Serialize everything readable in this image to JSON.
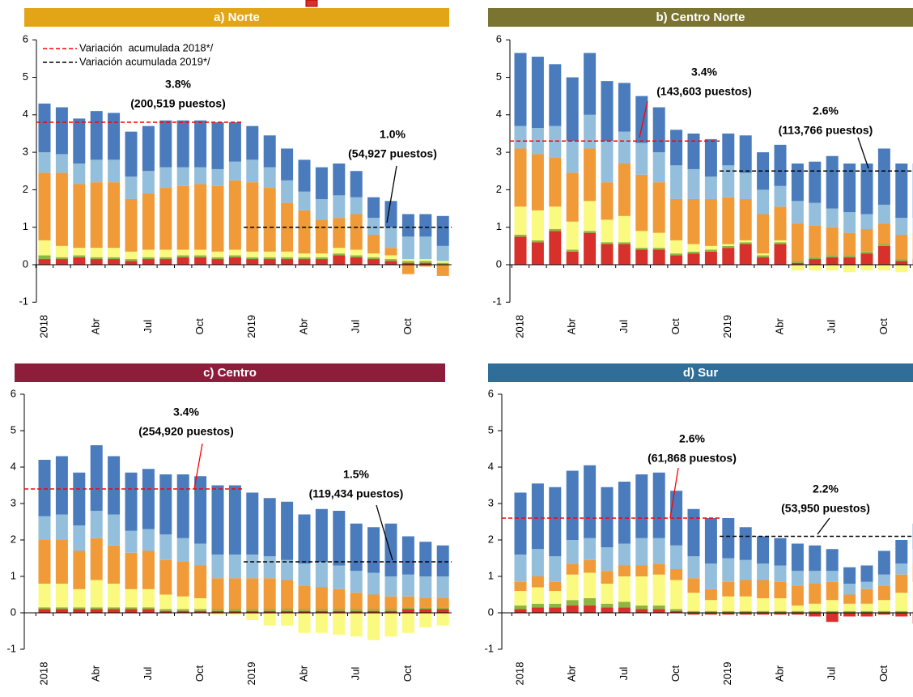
{
  "chart_data": [
    {
      "type": "bar",
      "title": "a) Norte",
      "title_color": "#e2a517",
      "categories": [
        "2018",
        null,
        null,
        "Abr",
        null,
        null,
        "Jul",
        null,
        null,
        "Oct",
        null,
        null,
        "2019",
        null,
        null,
        "Abr",
        null,
        null,
        "Jul",
        null,
        null,
        "Oct",
        null,
        null
      ],
      "ylim": [
        -1,
        6
      ],
      "yticks": [
        -1,
        0,
        1,
        2,
        3,
        4,
        5,
        6
      ],
      "series": [
        {
          "color": "#d8302a",
          "values": [
            0.15,
            0.15,
            0.2,
            0.15,
            0.15,
            0.1,
            0.15,
            0.15,
            0.2,
            0.2,
            0.15,
            0.2,
            0.15,
            0.15,
            0.15,
            0.15,
            0.15,
            0.25,
            0.2,
            0.15,
            0.1,
            0.05,
            0.05,
            0
          ]
        },
        {
          "color": "#8db640",
          "values": [
            0.1,
            0.05,
            0.05,
            0.05,
            0.05,
            0.05,
            0.05,
            0.05,
            0.05,
            0.05,
            0.05,
            0.05,
            0.05,
            0.05,
            0.05,
            0.05,
            0.05,
            0.05,
            0.05,
            0.05,
            0.05,
            0.05,
            0.05,
            0.05
          ]
        },
        {
          "color": "#fafa80",
          "values": [
            0.4,
            0.3,
            0.2,
            0.25,
            0.25,
            0.2,
            0.2,
            0.2,
            0.15,
            0.15,
            0.15,
            0.15,
            0.15,
            0.15,
            0.15,
            0.1,
            0.1,
            0.15,
            0.15,
            0.1,
            0.1,
            0.05,
            0.05,
            0.05
          ]
        },
        {
          "color": "#f09a38",
          "values": [
            1.8,
            1.95,
            1.7,
            1.75,
            1.75,
            1.4,
            1.5,
            1.65,
            1.7,
            1.75,
            1.75,
            1.85,
            1.85,
            1.7,
            1.3,
            1.15,
            0.9,
            0.8,
            0.95,
            0.5,
            0.2,
            -0.25,
            -0.05,
            -0.3
          ]
        },
        {
          "color": "#93bfdd",
          "values": [
            0.55,
            0.5,
            0.55,
            0.6,
            0.6,
            0.6,
            0.6,
            0.55,
            0.5,
            0.45,
            0.45,
            0.5,
            0.6,
            0.55,
            0.6,
            0.5,
            0.55,
            0.6,
            0.45,
            0.45,
            0.55,
            0.6,
            0.6,
            0.4
          ]
        },
        {
          "color": "#4a7bbd",
          "values": [
            1.3,
            1.25,
            1.2,
            1.3,
            1.25,
            1.2,
            1.2,
            1.25,
            1.25,
            1.25,
            1.25,
            1.05,
            0.9,
            0.85,
            0.85,
            0.85,
            0.85,
            0.85,
            0.7,
            0.55,
            0.7,
            0.6,
            0.6,
            0.8
          ]
        }
      ],
      "hlines": [
        {
          "value": 3.8,
          "color": "#ff0000",
          "name": "Variación  acumulada 2018*/"
        },
        {
          "value": 1.0,
          "color": "#000000",
          "name": "Variación acumulada 2019*/"
        }
      ],
      "annotations": [
        {
          "lines": [
            "3.8%",
            "(200,519 puestos)"
          ],
          "color": "#ff0000"
        },
        {
          "lines": [
            "1.0%",
            "(54,927 puestos)"
          ],
          "color": "#000000"
        }
      ]
    },
    {
      "type": "bar",
      "title": "b) Centro Norte",
      "title_color": "#7a7430",
      "categories": [
        "2018",
        null,
        null,
        "Abr",
        null,
        null,
        "Jul",
        null,
        null,
        "Oct",
        null,
        null,
        "2019",
        null,
        null,
        "Abr",
        null,
        null,
        "Jul",
        null,
        null,
        "Oct",
        null,
        null
      ],
      "ylim": [
        -1,
        6
      ],
      "yticks": [
        -1,
        0,
        1,
        2,
        3,
        4,
        5,
        6
      ],
      "series": [
        {
          "color": "#d8302a",
          "values": [
            0.75,
            0.6,
            0.9,
            0.35,
            0.85,
            0.55,
            0.55,
            0.4,
            0.4,
            0.25,
            0.3,
            0.35,
            0.45,
            0.55,
            0.2,
            0.55,
            0.05,
            0.15,
            0.2,
            0.2,
            0.3,
            0.5,
            0.1,
            0.15
          ]
        },
        {
          "color": "#8db640",
          "values": [
            0.05,
            0.05,
            0.05,
            0.05,
            0.05,
            0.05,
            0.05,
            0.05,
            0.05,
            0.05,
            0.05,
            0.05,
            0.05,
            0.05,
            0.05,
            0.05,
            0.05,
            0.05,
            0.05,
            0.05,
            0.05,
            0.05,
            0.05,
            0.05
          ]
        },
        {
          "color": "#fafa80",
          "values": [
            0.75,
            0.8,
            0.6,
            0.75,
            0.8,
            0.6,
            0.7,
            0.45,
            0.4,
            0.35,
            0.2,
            0.1,
            0.05,
            0.05,
            0.05,
            0.05,
            -0.15,
            -0.15,
            -0.15,
            -0.2,
            -0.15,
            -0.15,
            -0.2,
            -0.2
          ]
        },
        {
          "color": "#f09a38",
          "values": [
            1.55,
            1.5,
            1.3,
            1.3,
            1.4,
            1.0,
            1.4,
            1.5,
            1.35,
            1.1,
            1.2,
            1.25,
            1.25,
            1.1,
            1.05,
            0.9,
            1.0,
            0.85,
            0.75,
            0.6,
            0.6,
            0.55,
            0.65,
            0.65
          ]
        },
        {
          "color": "#93bfdd",
          "values": [
            0.6,
            0.7,
            0.85,
            0.85,
            0.9,
            1.1,
            0.85,
            0.85,
            0.8,
            0.9,
            0.8,
            0.6,
            0.85,
            0.7,
            0.65,
            0.55,
            0.6,
            0.6,
            0.5,
            0.55,
            0.4,
            0.5,
            0.45,
            0.4
          ]
        },
        {
          "color": "#4a7bbd",
          "values": [
            1.95,
            1.9,
            1.65,
            1.7,
            1.65,
            1.6,
            1.3,
            1.25,
            1.2,
            0.95,
            0.95,
            1.0,
            0.85,
            1.0,
            1.0,
            1.1,
            1.0,
            1.1,
            1.4,
            1.3,
            1.35,
            1.5,
            1.45,
            1.45
          ]
        }
      ],
      "hlines": [
        {
          "value": 3.3,
          "color": "#ff0000"
        },
        {
          "value": 2.5,
          "color": "#000000"
        }
      ],
      "annotations": [
        {
          "lines": [
            "3.4%",
            "(143,603 puestos)"
          ],
          "color": "#ff0000"
        },
        {
          "lines": [
            "2.6%",
            "(113,766 puestos)"
          ],
          "color": "#000000"
        }
      ]
    },
    {
      "type": "bar",
      "title": "c) Centro",
      "title_color": "#8e1d3c",
      "categories": [
        "2018",
        null,
        null,
        "Abr",
        null,
        null,
        "Jul",
        null,
        null,
        "Oct",
        null,
        null,
        "2019",
        null,
        null,
        "Abr",
        null,
        null,
        "Jul",
        null,
        null,
        "Oct",
        null,
        null
      ],
      "ylim": [
        -1,
        6
      ],
      "yticks": [
        -1,
        0,
        1,
        2,
        3,
        4,
        5,
        6
      ],
      "series": [
        {
          "color": "#d8302a",
          "values": [
            0.1,
            0.1,
            0.1,
            0.1,
            0.1,
            0.1,
            0.1,
            0.05,
            0.05,
            0.05,
            0.05,
            0.05,
            0.05,
            0.05,
            0.05,
            0.05,
            0.05,
            0.05,
            0.05,
            0.05,
            0.05,
            0.1,
            0.1,
            0.1
          ]
        },
        {
          "color": "#8db640",
          "values": [
            0.05,
            0.05,
            0.05,
            0.05,
            0.05,
            0.05,
            0.05,
            0.05,
            0.05,
            0.05,
            0.05,
            0.05,
            0.05,
            0.05,
            0.05,
            0.05,
            0.05,
            0.05,
            0.05,
            0.05,
            0.05,
            0.05,
            0.05,
            0.05
          ]
        },
        {
          "color": "#fafa80",
          "values": [
            0.65,
            0.65,
            0.5,
            0.75,
            0.65,
            0.5,
            0.5,
            0.4,
            0.35,
            0.3,
            -0.05,
            -0.05,
            -0.2,
            -0.35,
            -0.35,
            -0.55,
            -0.55,
            -0.6,
            -0.65,
            -0.75,
            -0.65,
            -0.55,
            -0.4,
            -0.35
          ]
        },
        {
          "color": "#f09a38",
          "values": [
            1.2,
            1.2,
            1.05,
            1.15,
            1.05,
            1.0,
            1.05,
            0.95,
            0.95,
            0.9,
            0.85,
            0.85,
            0.85,
            0.85,
            0.8,
            0.65,
            0.6,
            0.55,
            0.45,
            0.4,
            0.35,
            0.3,
            0.25,
            0.25
          ]
        },
        {
          "color": "#93bfdd",
          "values": [
            0.65,
            0.7,
            0.7,
            0.75,
            0.85,
            0.6,
            0.6,
            0.7,
            0.65,
            0.6,
            0.65,
            0.65,
            0.65,
            0.6,
            0.55,
            0.6,
            0.7,
            0.65,
            0.6,
            0.6,
            0.55,
            0.6,
            0.6,
            0.6
          ]
        },
        {
          "color": "#4a7bbd",
          "values": [
            1.55,
            1.6,
            1.45,
            1.8,
            1.6,
            1.6,
            1.65,
            1.65,
            1.75,
            1.85,
            1.9,
            1.9,
            1.7,
            1.6,
            1.6,
            1.35,
            1.45,
            1.5,
            1.3,
            1.25,
            1.45,
            1.05,
            0.95,
            0.85
          ]
        }
      ],
      "hlines": [
        {
          "value": 3.4,
          "color": "#ff0000"
        },
        {
          "value": 1.4,
          "color": "#000000"
        }
      ],
      "annotations": [
        {
          "lines": [
            "3.4%",
            "(254,920 puestos)"
          ],
          "color": "#ff0000"
        },
        {
          "lines": [
            "1.5%",
            "(119,434 puestos)"
          ],
          "color": "#000000"
        }
      ]
    },
    {
      "type": "bar",
      "title": "d) Sur",
      "title_color": "#2f6e99",
      "categories": [
        "2018",
        null,
        null,
        "Abr",
        null,
        null,
        "Jul",
        null,
        null,
        "Oct",
        null,
        null,
        "2019",
        null,
        null,
        "Abr",
        null,
        null,
        "Jul",
        null,
        null,
        "Oct",
        null,
        null
      ],
      "ylim": [
        -1,
        6
      ],
      "yticks": [
        -1,
        0,
        1,
        2,
        3,
        4,
        5,
        6
      ],
      "series": [
        {
          "color": "#d8302a",
          "values": [
            0.1,
            0.15,
            0.15,
            0.2,
            0.2,
            0.15,
            0.15,
            0.1,
            0.1,
            0.05,
            -0.05,
            -0.05,
            -0.05,
            -0.05,
            -0.05,
            -0.05,
            -0.05,
            -0.1,
            -0.25,
            -0.1,
            -0.1,
            -0.05,
            -0.1,
            -0.3
          ]
        },
        {
          "color": "#8db640",
          "values": [
            0.1,
            0.1,
            0.1,
            0.15,
            0.2,
            0.1,
            0.15,
            0.1,
            0.1,
            0.05,
            0.05,
            0.05,
            0.05,
            0.05,
            0.05,
            0.05,
            0.05,
            0.05,
            0.05,
            0.05,
            0.05,
            0.05,
            0.05,
            0.05
          ]
        },
        {
          "color": "#fafa80",
          "values": [
            0.4,
            0.45,
            0.35,
            0.7,
            0.7,
            0.55,
            0.7,
            0.8,
            0.85,
            0.8,
            0.5,
            0.3,
            0.4,
            0.4,
            0.35,
            0.35,
            0.15,
            0.2,
            0.3,
            0.2,
            0.2,
            0.3,
            0.5,
            0.8
          ]
        },
        {
          "color": "#f09a38",
          "values": [
            0.25,
            0.3,
            0.25,
            0.3,
            0.35,
            0.35,
            0.3,
            0.3,
            0.3,
            0.3,
            0.4,
            0.3,
            0.4,
            0.45,
            0.5,
            0.45,
            0.55,
            0.55,
            0.5,
            0.25,
            0.4,
            0.4,
            0.5,
            0.5
          ]
        },
        {
          "color": "#93bfdd",
          "values": [
            0.75,
            0.75,
            0.7,
            0.65,
            0.6,
            0.65,
            0.6,
            0.75,
            0.7,
            0.65,
            0.6,
            0.7,
            0.65,
            0.55,
            0.45,
            0.45,
            0.4,
            0.35,
            0.3,
            0.3,
            0.2,
            0.3,
            0.3,
            0.4
          ]
        },
        {
          "color": "#4a7bbd",
          "values": [
            1.7,
            1.8,
            1.9,
            1.9,
            2.0,
            1.65,
            1.7,
            1.75,
            1.8,
            1.5,
            1.3,
            1.25,
            1.1,
            0.9,
            0.75,
            0.75,
            0.75,
            0.7,
            0.6,
            0.45,
            0.45,
            0.65,
            0.65,
            0.7
          ]
        }
      ],
      "hlines": [
        {
          "value": 2.6,
          "color": "#ff0000"
        },
        {
          "value": 2.1,
          "color": "#000000"
        }
      ],
      "annotations": [
        {
          "lines": [
            "2.6%",
            "(61,868 puestos)"
          ],
          "color": "#ff0000"
        },
        {
          "lines": [
            "2.2%",
            "(53,950 puestos)"
          ],
          "color": "#000000"
        }
      ]
    }
  ]
}
